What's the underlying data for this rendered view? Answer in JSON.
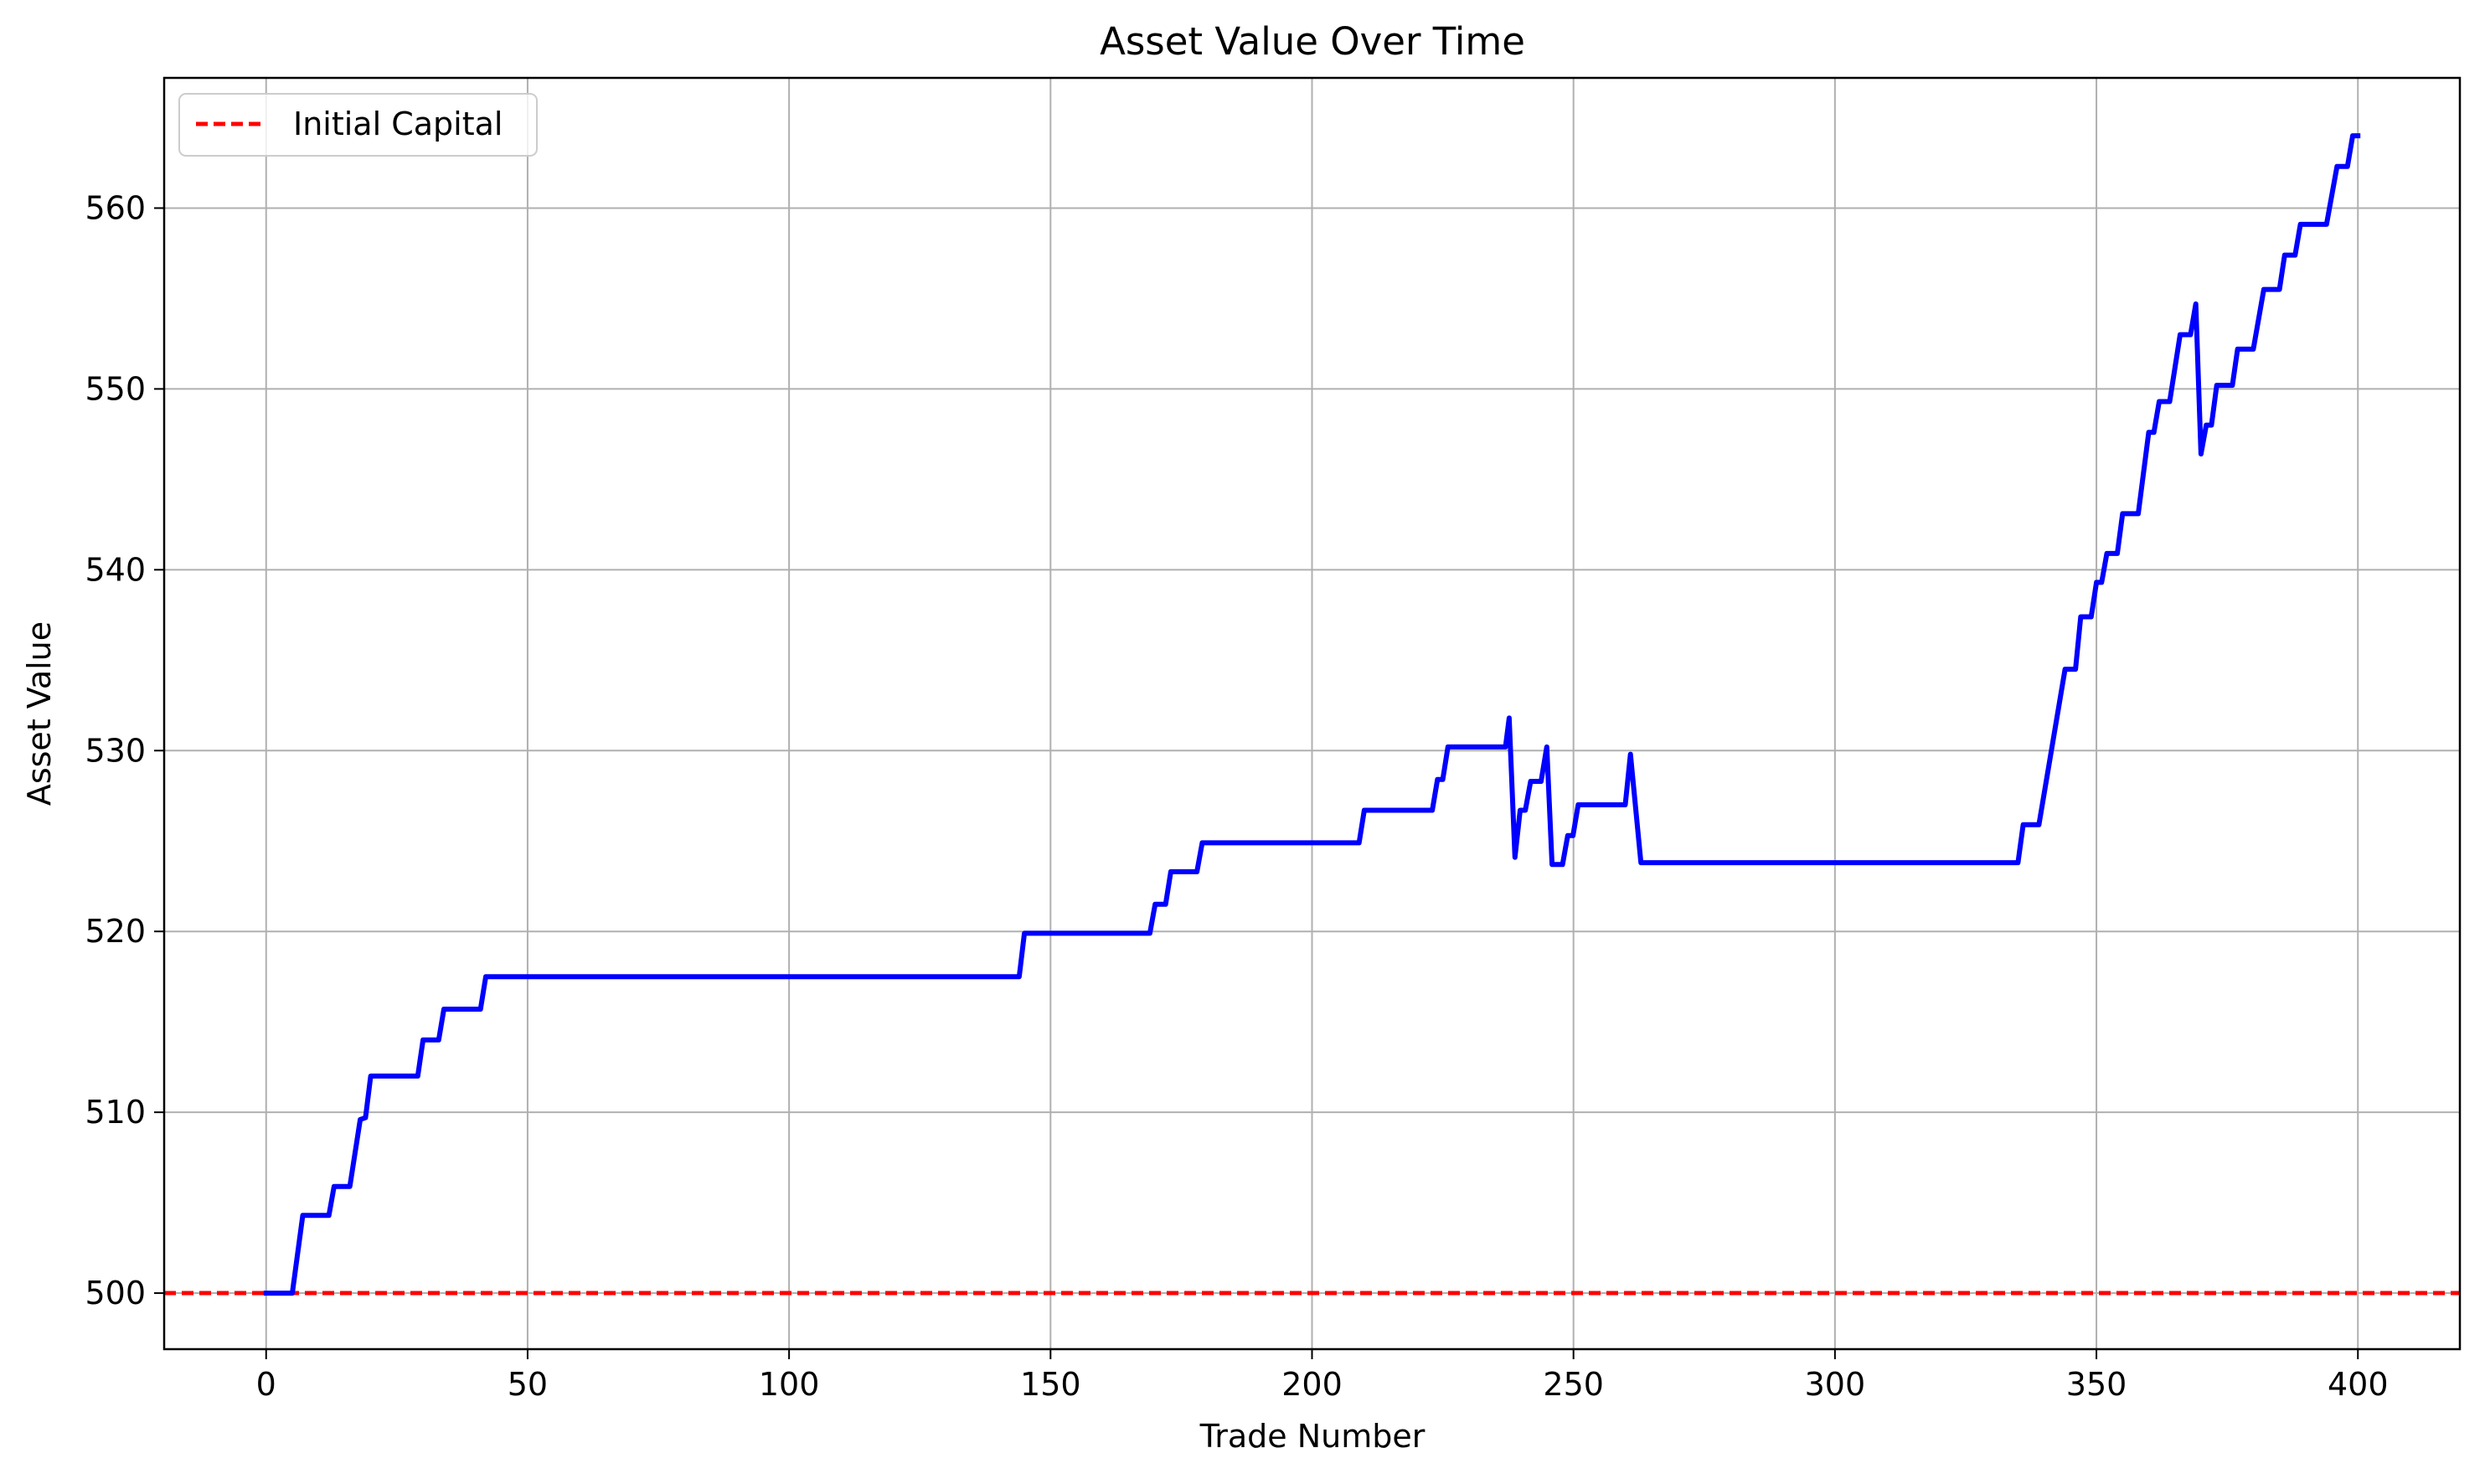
{
  "chart_data": {
    "type": "line",
    "title": "Asset Value Over Time",
    "xlabel": "Trade Number",
    "ylabel": "Asset Value",
    "xlim": [
      -19.5,
      419.5
    ],
    "ylim": [
      496.9,
      567.2
    ],
    "xticks": [
      0,
      50,
      100,
      150,
      200,
      250,
      300,
      350,
      400
    ],
    "yticks": [
      500,
      510,
      520,
      530,
      540,
      550,
      560
    ],
    "grid": true,
    "legend_position": "top-left",
    "series": [
      {
        "key": "asset",
        "color": "#0000ff",
        "points": [
          [
            0,
            500.0
          ],
          [
            5,
            500.0
          ],
          [
            7,
            504.3
          ],
          [
            12,
            504.3
          ],
          [
            13,
            505.9
          ],
          [
            16,
            505.9
          ],
          [
            18,
            509.6
          ],
          [
            19,
            509.7
          ],
          [
            20,
            512.0
          ],
          [
            29,
            512.0
          ],
          [
            30,
            514.0
          ],
          [
            33,
            514.0
          ],
          [
            34,
            515.7
          ],
          [
            41,
            515.7
          ],
          [
            42,
            517.5
          ],
          [
            144,
            517.5
          ],
          [
            145,
            519.9
          ],
          [
            169,
            519.9
          ],
          [
            170,
            521.5
          ],
          [
            172,
            521.5
          ],
          [
            173,
            523.3
          ],
          [
            178,
            523.3
          ],
          [
            179,
            524.9
          ],
          [
            209,
            524.9
          ],
          [
            210,
            526.7
          ],
          [
            223,
            526.7
          ],
          [
            224,
            528.4
          ],
          [
            225,
            528.4
          ],
          [
            226,
            530.2
          ],
          [
            237,
            530.2
          ],
          [
            237.7,
            531.8
          ],
          [
            238.8,
            524.1
          ],
          [
            239.8,
            526.7
          ],
          [
            240.8,
            526.7
          ],
          [
            241.8,
            528.3
          ],
          [
            243.8,
            528.3
          ],
          [
            244.9,
            530.2
          ],
          [
            245.9,
            523.7
          ],
          [
            247.9,
            523.7
          ],
          [
            248.9,
            525.3
          ],
          [
            249.9,
            525.3
          ],
          [
            250.9,
            527.0
          ],
          [
            259.9,
            527.0
          ],
          [
            260.9,
            529.8
          ],
          [
            262.9,
            523.8
          ],
          [
            335,
            523.8
          ],
          [
            336,
            525.9
          ],
          [
            339,
            525.9
          ],
          [
            344,
            534.5
          ],
          [
            346,
            534.5
          ],
          [
            347,
            537.4
          ],
          [
            349,
            537.4
          ],
          [
            350,
            539.3
          ],
          [
            351,
            539.3
          ],
          [
            352,
            540.9
          ],
          [
            354,
            540.9
          ],
          [
            355,
            543.1
          ],
          [
            358,
            543.1
          ],
          [
            360,
            547.6
          ],
          [
            361,
            547.6
          ],
          [
            362,
            549.3
          ],
          [
            364,
            549.3
          ],
          [
            366,
            553.0
          ],
          [
            368,
            553.0
          ],
          [
            369,
            554.7
          ],
          [
            370,
            546.4
          ],
          [
            371,
            548.0
          ],
          [
            372,
            548.0
          ],
          [
            373,
            550.2
          ],
          [
            376,
            550.2
          ],
          [
            377,
            552.2
          ],
          [
            380,
            552.2
          ],
          [
            382,
            555.5
          ],
          [
            385,
            555.5
          ],
          [
            386,
            557.4
          ],
          [
            388,
            557.4
          ],
          [
            389,
            559.1
          ],
          [
            394,
            559.1
          ],
          [
            396,
            562.3
          ],
          [
            398,
            562.3
          ],
          [
            399,
            564.0
          ],
          [
            400,
            564.0
          ]
        ]
      }
    ],
    "reference_lines": [
      {
        "name": "Initial Capital",
        "y": 500,
        "color": "#ff0000",
        "style": "dashed"
      }
    ]
  }
}
